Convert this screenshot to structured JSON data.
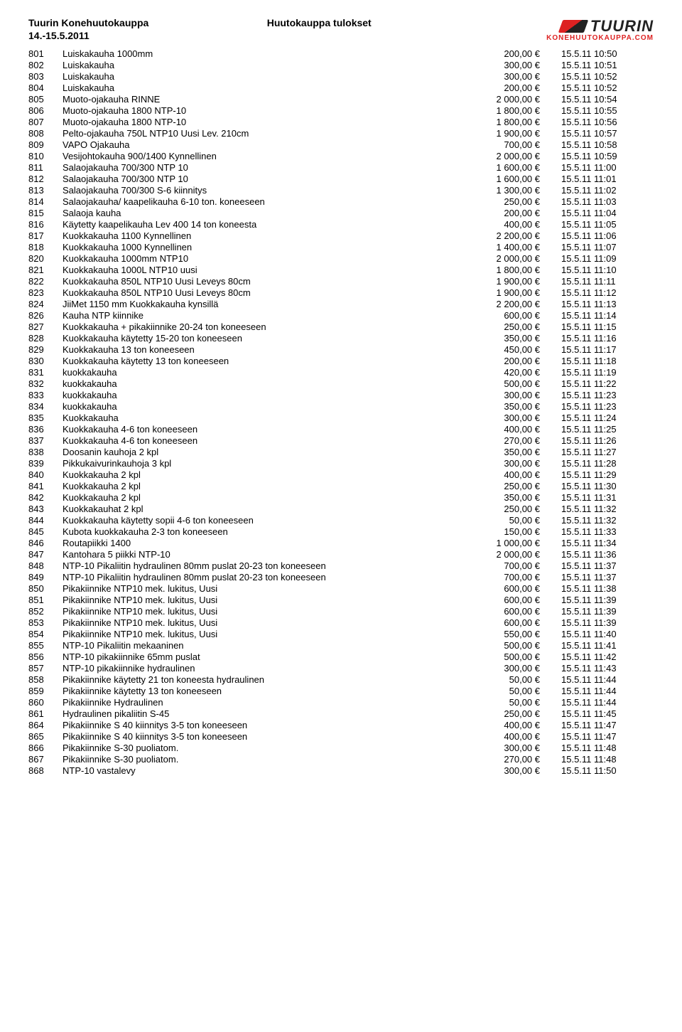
{
  "header": {
    "title": "Tuurin Konehuutokauppa",
    "date": "14.-15.5.2011",
    "center": "Huutokauppa tulokset",
    "logo_text": "TUURIN",
    "logo_sub": "KONEHUUTOKAUPPA.COM"
  },
  "rows": [
    {
      "id": "801",
      "desc": "Luiskakauha 1000mm",
      "price": "200,00 €",
      "time": "15.5.11 10:50"
    },
    {
      "id": "802",
      "desc": "Luiskakauha",
      "price": "300,00 €",
      "time": "15.5.11 10:51"
    },
    {
      "id": "803",
      "desc": "Luiskakauha",
      "price": "300,00 €",
      "time": "15.5.11 10:52"
    },
    {
      "id": "804",
      "desc": "Luiskakauha",
      "price": "200,00 €",
      "time": "15.5.11 10:52"
    },
    {
      "id": "805",
      "desc": "Muoto-ojakauha RINNE",
      "price": "2 000,00 €",
      "time": "15.5.11 10:54"
    },
    {
      "id": "806",
      "desc": "Muoto-ojakauha 1800 NTP-10",
      "price": "1 800,00 €",
      "time": "15.5.11 10:55"
    },
    {
      "id": "807",
      "desc": "Muoto-ojakauha 1800 NTP-10",
      "price": "1 800,00 €",
      "time": "15.5.11 10:56"
    },
    {
      "id": "808",
      "desc": "Pelto-ojakauha 750L NTP10 Uusi Lev. 210cm",
      "price": "1 900,00 €",
      "time": "15.5.11 10:57"
    },
    {
      "id": "809",
      "desc": "VAPO Ojakauha",
      "price": "700,00 €",
      "time": "15.5.11 10:58"
    },
    {
      "id": "810",
      "desc": "Vesijohtokauha 900/1400 Kynnellinen",
      "price": "2 000,00 €",
      "time": "15.5.11 10:59"
    },
    {
      "id": "811",
      "desc": "Salaojakauha 700/300  NTP 10",
      "price": "1 600,00 €",
      "time": "15.5.11 11:00"
    },
    {
      "id": "812",
      "desc": "Salaojakauha 700/300  NTP 10",
      "price": "1 600,00 €",
      "time": "15.5.11 11:01"
    },
    {
      "id": "813",
      "desc": "Salaojakauha 700/300  S-6 kiinnitys",
      "price": "1 300,00 €",
      "time": "15.5.11 11:02"
    },
    {
      "id": "814",
      "desc": "Salaojakauha/ kaapelikauha 6-10 ton. koneeseen",
      "price": "250,00 €",
      "time": "15.5.11 11:03"
    },
    {
      "id": "815",
      "desc": "Salaoja kauha",
      "price": "200,00 €",
      "time": "15.5.11 11:04"
    },
    {
      "id": "816",
      "desc": "Käytetty kaapelikauha Lev 400  14 ton koneesta",
      "price": "400,00 €",
      "time": "15.5.11 11:05"
    },
    {
      "id": "817",
      "desc": "Kuokkakauha 1100 Kynnellinen",
      "price": "2 200,00 €",
      "time": "15.5.11 11:06"
    },
    {
      "id": "818",
      "desc": "Kuokkakauha 1000 Kynnellinen",
      "price": "1 400,00 €",
      "time": "15.5.11 11:07"
    },
    {
      "id": "820",
      "desc": "Kuokkakauha 1000mm NTP10",
      "price": "2 000,00 €",
      "time": "15.5.11 11:09"
    },
    {
      "id": "821",
      "desc": "Kuokkakauha 1000L NTP10 uusi",
      "price": "1 800,00 €",
      "time": "15.5.11 11:10"
    },
    {
      "id": "822",
      "desc": "Kuokkakauha 850L NTP10 Uusi Leveys 80cm",
      "price": "1 900,00 €",
      "time": "15.5.11 11:11"
    },
    {
      "id": "823",
      "desc": "Kuokkakauha 850L NTP10 Uusi Leveys 80cm",
      "price": "1 900,00 €",
      "time": "15.5.11 11:12"
    },
    {
      "id": "824",
      "desc": "JiiMet 1150 mm Kuokkakauha kynsillä",
      "price": "2 200,00 €",
      "time": "15.5.11 11:13"
    },
    {
      "id": "826",
      "desc": "Kauha NTP kiinnike",
      "price": "600,00 €",
      "time": "15.5.11 11:14"
    },
    {
      "id": "827",
      "desc": "Kuokkakauha + pikakiinnike 20-24 ton koneeseen",
      "price": "250,00 €",
      "time": "15.5.11 11:15"
    },
    {
      "id": "828",
      "desc": "Kuokkakauha käytetty 15-20 ton koneeseen",
      "price": "350,00 €",
      "time": "15.5.11 11:16"
    },
    {
      "id": "829",
      "desc": "Kuokkakauha 13 ton koneeseen",
      "price": "450,00 €",
      "time": "15.5.11 11:17"
    },
    {
      "id": "830",
      "desc": "Kuokkakauha käytetty 13 ton koneeseen",
      "price": "200,00 €",
      "time": "15.5.11 11:18"
    },
    {
      "id": "831",
      "desc": "kuokkakauha",
      "price": "420,00 €",
      "time": "15.5.11 11:19"
    },
    {
      "id": "832",
      "desc": "kuokkakauha",
      "price": "500,00 €",
      "time": "15.5.11 11:22"
    },
    {
      "id": "833",
      "desc": "kuokkakauha",
      "price": "300,00 €",
      "time": "15.5.11 11:23"
    },
    {
      "id": "834",
      "desc": "kuokkakauha",
      "price": "350,00 €",
      "time": "15.5.11 11:23"
    },
    {
      "id": "835",
      "desc": "Kuokkakauha",
      "price": "300,00 €",
      "time": "15.5.11 11:24"
    },
    {
      "id": "836",
      "desc": "Kuokkakauha 4-6 ton koneeseen",
      "price": "400,00 €",
      "time": "15.5.11 11:25"
    },
    {
      "id": "837",
      "desc": "Kuokkakauha 4-6 ton koneeseen",
      "price": "270,00 €",
      "time": "15.5.11 11:26"
    },
    {
      "id": "838",
      "desc": "Doosanin kauhoja 2 kpl",
      "price": "350,00 €",
      "time": "15.5.11 11:27"
    },
    {
      "id": "839",
      "desc": "Pikkukaivurinkauhoja 3 kpl",
      "price": "300,00 €",
      "time": "15.5.11 11:28"
    },
    {
      "id": "840",
      "desc": "Kuokkakauha 2 kpl",
      "price": "400,00 €",
      "time": "15.5.11 11:29"
    },
    {
      "id": "841",
      "desc": "Kuokkakauha 2 kpl",
      "price": "250,00 €",
      "time": "15.5.11 11:30"
    },
    {
      "id": "842",
      "desc": "Kuokkakauha 2 kpl",
      "price": "350,00 €",
      "time": "15.5.11 11:31"
    },
    {
      "id": "843",
      "desc": "Kuokkakauhat 2 kpl",
      "price": "250,00 €",
      "time": "15.5.11 11:32"
    },
    {
      "id": "844",
      "desc": "Kuokkakauha käytetty sopii 4-6 ton koneeseen",
      "price": "50,00 €",
      "time": "15.5.11 11:32"
    },
    {
      "id": "845",
      "desc": "Kubota kuokkakauha 2-3 ton koneeseen",
      "price": "150,00 €",
      "time": "15.5.11 11:33"
    },
    {
      "id": "846",
      "desc": "Routapiikki 1400",
      "price": "1 000,00 €",
      "time": "15.5.11 11:34"
    },
    {
      "id": "847",
      "desc": "Kantohara 5 piikki NTP-10",
      "price": "2 000,00 €",
      "time": "15.5.11 11:36"
    },
    {
      "id": "848",
      "desc": "NTP-10 Pikaliitin hydraulinen 80mm puslat 20-23 ton koneeseen",
      "price": "700,00 €",
      "time": "15.5.11 11:37"
    },
    {
      "id": "849",
      "desc": "NTP-10 Pikaliitin hydraulinen 80mm puslat 20-23 ton koneeseen",
      "price": "700,00 €",
      "time": "15.5.11 11:37"
    },
    {
      "id": "850",
      "desc": "Pikakiinnike NTP10 mek. lukitus, Uusi",
      "price": "600,00 €",
      "time": "15.5.11 11:38"
    },
    {
      "id": "851",
      "desc": "Pikakiinnike NTP10 mek. lukitus, Uusi",
      "price": "600,00 €",
      "time": "15.5.11 11:39"
    },
    {
      "id": "852",
      "desc": "Pikakiinnike NTP10 mek. lukitus, Uusi",
      "price": "600,00 €",
      "time": "15.5.11 11:39"
    },
    {
      "id": "853",
      "desc": "Pikakiinnike NTP10 mek. lukitus, Uusi",
      "price": "600,00 €",
      "time": "15.5.11 11:39"
    },
    {
      "id": "854",
      "desc": "Pikakiinnike NTP10 mek. lukitus, Uusi",
      "price": "550,00 €",
      "time": "15.5.11 11:40"
    },
    {
      "id": "855",
      "desc": "NTP-10 Pikaliitin mekaaninen",
      "price": "500,00 €",
      "time": "15.5.11 11:41"
    },
    {
      "id": "856",
      "desc": "NTP-10 pikakiinnike 65mm puslat",
      "price": "500,00 €",
      "time": "15.5.11 11:42"
    },
    {
      "id": "857",
      "desc": "NTP-10 pikakiinnike hydraulinen",
      "price": "300,00 €",
      "time": "15.5.11 11:43"
    },
    {
      "id": "858",
      "desc": "Pikakiinnike käytetty 21 ton koneesta hydraulinen",
      "price": "50,00 €",
      "time": "15.5.11 11:44"
    },
    {
      "id": "859",
      "desc": "Pikakiinnike käytetty 13 ton koneeseen",
      "price": "50,00 €",
      "time": "15.5.11 11:44"
    },
    {
      "id": "860",
      "desc": "Pikakiinnike Hydraulinen",
      "price": "50,00 €",
      "time": "15.5.11 11:44"
    },
    {
      "id": "861",
      "desc": "Hydraulinen pikaliitin S-45",
      "price": "250,00 €",
      "time": "15.5.11 11:45"
    },
    {
      "id": "864",
      "desc": "Pikakiinnike S 40 kiinnitys 3-5 ton koneeseen",
      "price": "400,00 €",
      "time": "15.5.11 11:47"
    },
    {
      "id": "865",
      "desc": "Pikakiinnike S 40 kiinnitys 3-5 ton koneeseen",
      "price": "400,00 €",
      "time": "15.5.11 11:47"
    },
    {
      "id": "866",
      "desc": "Pikakiinnike S-30  puoliatom.",
      "price": "300,00 €",
      "time": "15.5.11 11:48"
    },
    {
      "id": "867",
      "desc": "Pikakiinnike S-30  puoliatom.",
      "price": "270,00 €",
      "time": "15.5.11 11:48"
    },
    {
      "id": "868",
      "desc": "NTP-10 vastalevy",
      "price": "300,00 €",
      "time": "15.5.11 11:50"
    }
  ]
}
